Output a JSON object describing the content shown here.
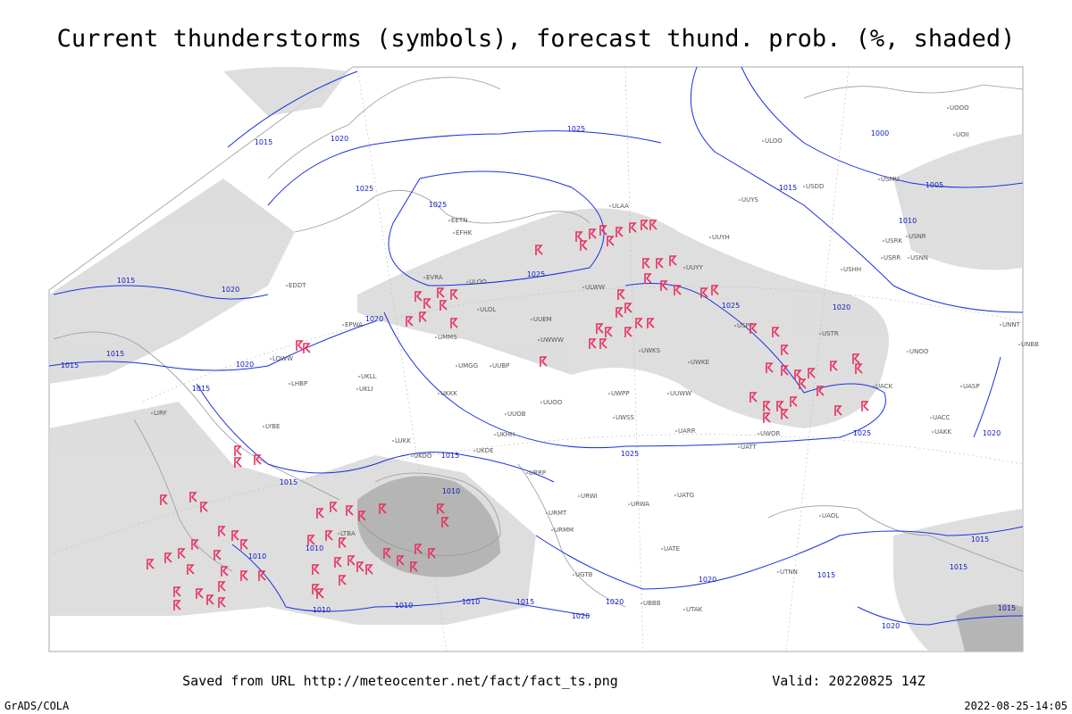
{
  "header": {
    "title": "Current thunderstorms (symbols), forecast thund. prob. (%, shaded)"
  },
  "footer": {
    "saved_from": "Saved from URL http://meteocenter.net/fact/fact_ts.png",
    "valid": "Valid: 20220825 14Z",
    "software": "GrADS/COLA",
    "timestamp": "2022-08-25-14:05"
  },
  "isobar_labels": [
    "1015",
    "1020",
    "1025",
    "1000",
    "1005",
    "1015",
    "1010",
    "1025",
    "1025",
    "1015",
    "1020",
    "1015",
    "1015",
    "1020",
    "1015",
    "1020",
    "1025",
    "1025",
    "1020",
    "1025",
    "1020",
    "1025",
    "1015",
    "1015",
    "1010",
    "1010",
    "1010",
    "1010",
    "1010",
    "1010",
    "1015",
    "1020",
    "1020",
    "1020",
    "1015",
    "1015",
    "1015",
    "1015",
    "1020"
  ],
  "stations": [
    "ULAA",
    "UUYS",
    "ULOO",
    "UUYY",
    "ULWW",
    "UUEM",
    "UWWW",
    "UWKS",
    "UUWW",
    "UWPP",
    "UWKE",
    "UUOO",
    "UUOB",
    "UWSS",
    "UARR",
    "UATT",
    "UWOR",
    "UUYH",
    "USHH",
    "USRR",
    "USNN",
    "USRK",
    "USNR",
    "USMU",
    "USDD",
    "UOOO",
    "UOII",
    "USTR",
    "USPP",
    "UNNT",
    "UNBB",
    "UACK",
    "UASP",
    "UACC",
    "UAKK",
    "UATG",
    "UAOL",
    "UATE",
    "UTAK",
    "UBBB",
    "UTNN",
    "UNOO",
    "ULOO",
    "EVRA",
    "ULOL",
    "UMMS",
    "UMGG",
    "UUBP",
    "UKKK",
    "UKLL",
    "UKLI",
    "LUKK",
    "UKOO",
    "UKHH",
    "UKDE",
    "URRP",
    "URWI",
    "URWA",
    "URMT",
    "URMM",
    "UGTB",
    "LTBA",
    "LYBE",
    "LHBP",
    "LOWW",
    "EPWA",
    "EDDT",
    "EFHK",
    "EETN",
    "LIRF"
  ]
}
